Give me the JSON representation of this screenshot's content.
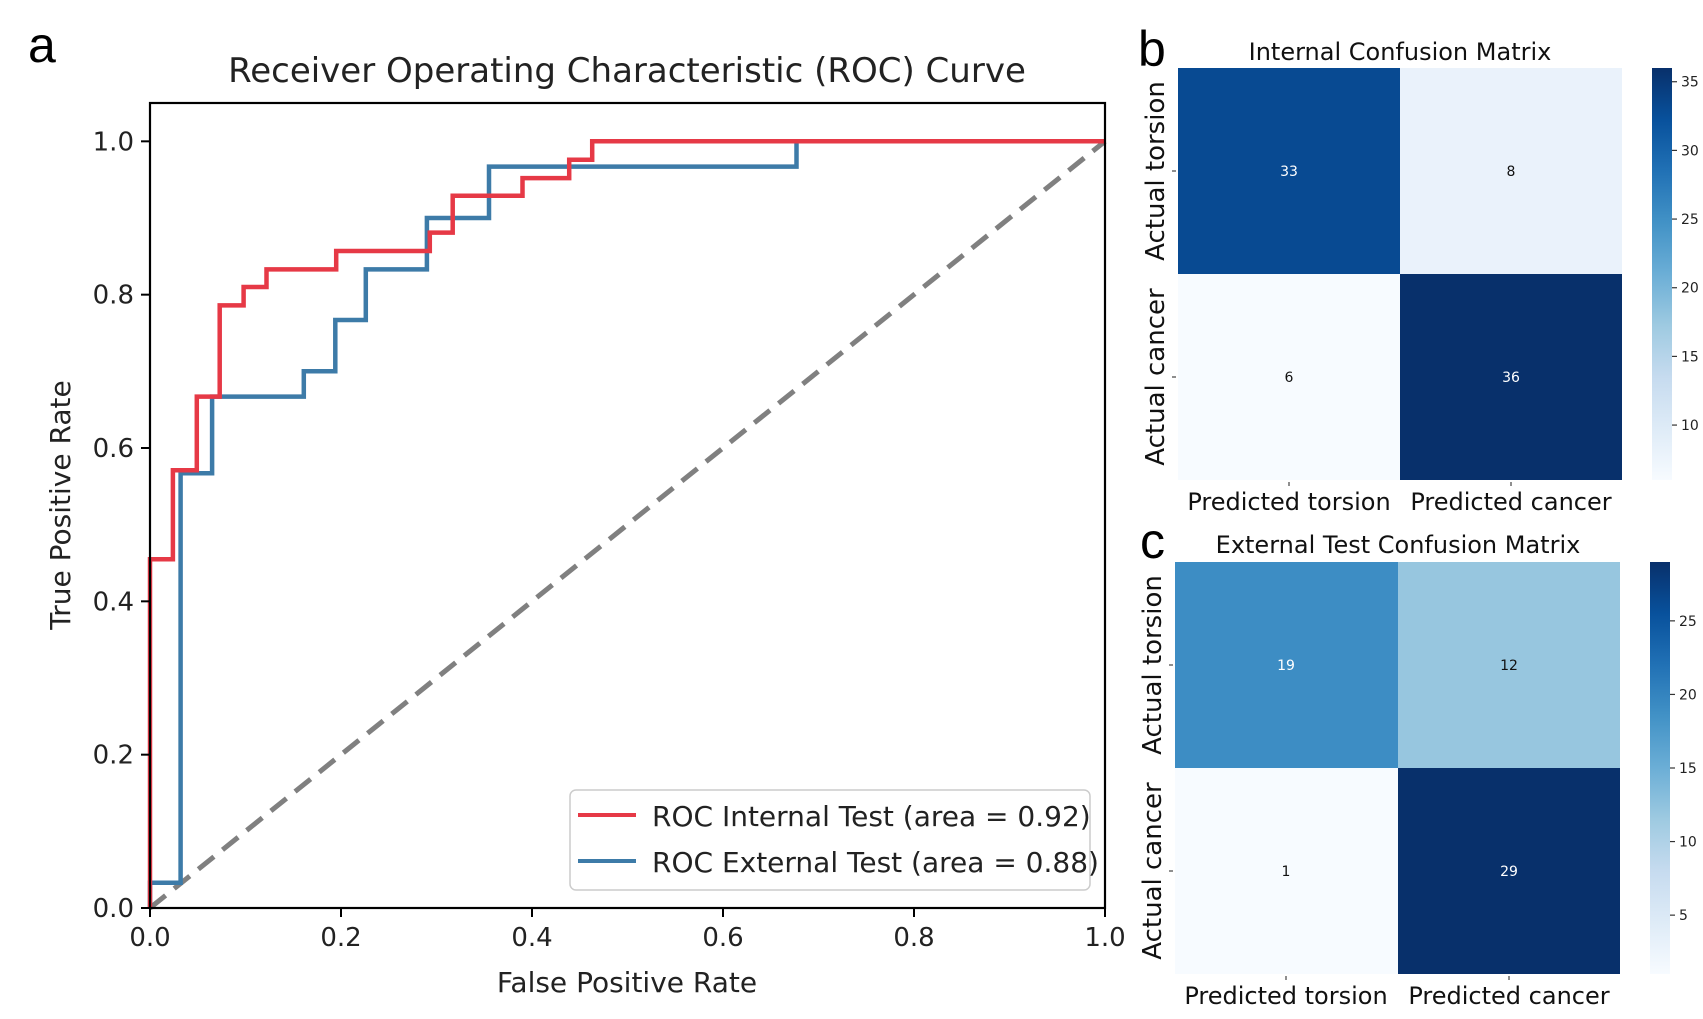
{
  "panels": [
    {
      "letter": "a"
    },
    {
      "letter": "b"
    },
    {
      "letter": "c"
    }
  ],
  "colors": {
    "internal_line": "#e63946",
    "external_line": "#3d7ba8",
    "chance_line": "#808080",
    "cmap_light": "#f7fbff",
    "cmap_dark": "#08306b"
  },
  "chart_data": [
    {
      "type": "line",
      "title": "Receiver Operating Characteristic (ROC) Curve",
      "xlabel": "False Positive Rate",
      "ylabel": "True Positive Rate",
      "xlim": [
        0,
        1
      ],
      "ylim": [
        0,
        1.05
      ],
      "xticks": [
        "0.0",
        "0.2",
        "0.4",
        "0.6",
        "0.8",
        "1.0"
      ],
      "yticks": [
        "0.0",
        "0.2",
        "0.4",
        "0.6",
        "0.8",
        "1.0"
      ],
      "grid": false,
      "legend_position": "lower-right",
      "series": [
        {
          "name": "ROC Internal Test (area = 0.92)",
          "color": "#e63946",
          "x": [
            0,
            0,
            0.024,
            0.024,
            0.049,
            0.049,
            0.073,
            0.073,
            0.098,
            0.098,
            0.122,
            0.122,
            0.195,
            0.195,
            0.293,
            0.293,
            0.317,
            0.317,
            0.39,
            0.39,
            0.439,
            0.439,
            0.463,
            0.463,
            1.0
          ],
          "y": [
            0,
            0.455,
            0.455,
            0.571,
            0.571,
            0.667,
            0.667,
            0.786,
            0.786,
            0.81,
            0.81,
            0.833,
            0.833,
            0.857,
            0.857,
            0.881,
            0.881,
            0.929,
            0.929,
            0.952,
            0.952,
            0.976,
            0.976,
            1.0,
            1.0
          ]
        },
        {
          "name": "ROC External Test (area = 0.88)",
          "color": "#3d7ba8",
          "x": [
            0,
            0,
            0.032,
            0.032,
            0.065,
            0.065,
            0.161,
            0.161,
            0.194,
            0.194,
            0.226,
            0.226,
            0.29,
            0.29,
            0.355,
            0.355,
            0.677,
            0.677,
            1.0
          ],
          "y": [
            0,
            0.033,
            0.033,
            0.567,
            0.567,
            0.667,
            0.667,
            0.7,
            0.7,
            0.767,
            0.767,
            0.833,
            0.833,
            0.9,
            0.9,
            0.967,
            0.967,
            1.0,
            1.0
          ]
        },
        {
          "style": "dashed",
          "color": "#808080",
          "x": [
            0,
            1
          ],
          "y": [
            0,
            1
          ]
        }
      ]
    },
    {
      "type": "heatmap",
      "title": "Internal Confusion Matrix",
      "row_labels": [
        "Actual torsion",
        "Actual cancer"
      ],
      "col_labels": [
        "Predicted torsion",
        "Predicted cancer"
      ],
      "values": [
        [
          33,
          8
        ],
        [
          6,
          36
        ]
      ],
      "cell_labels": [
        [
          "33",
          "8"
        ],
        [
          "6",
          "36"
        ]
      ],
      "colorbar": {
        "range": [
          6,
          36
        ],
        "ticks": [
          "10",
          "15",
          "20",
          "25",
          "30",
          "35"
        ]
      }
    },
    {
      "type": "heatmap",
      "title": "External Test Confusion Matrix",
      "row_labels": [
        "Actual torsion",
        "Actual cancer"
      ],
      "col_labels": [
        "Predicted torsion",
        "Predicted cancer"
      ],
      "values": [
        [
          19,
          12
        ],
        [
          1,
          29
        ]
      ],
      "cell_labels": [
        [
          "19",
          "12"
        ],
        [
          "1",
          "29"
        ]
      ],
      "colorbar": {
        "range": [
          1,
          29
        ],
        "ticks": [
          "5",
          "10",
          "15",
          "20",
          "25"
        ]
      }
    }
  ]
}
